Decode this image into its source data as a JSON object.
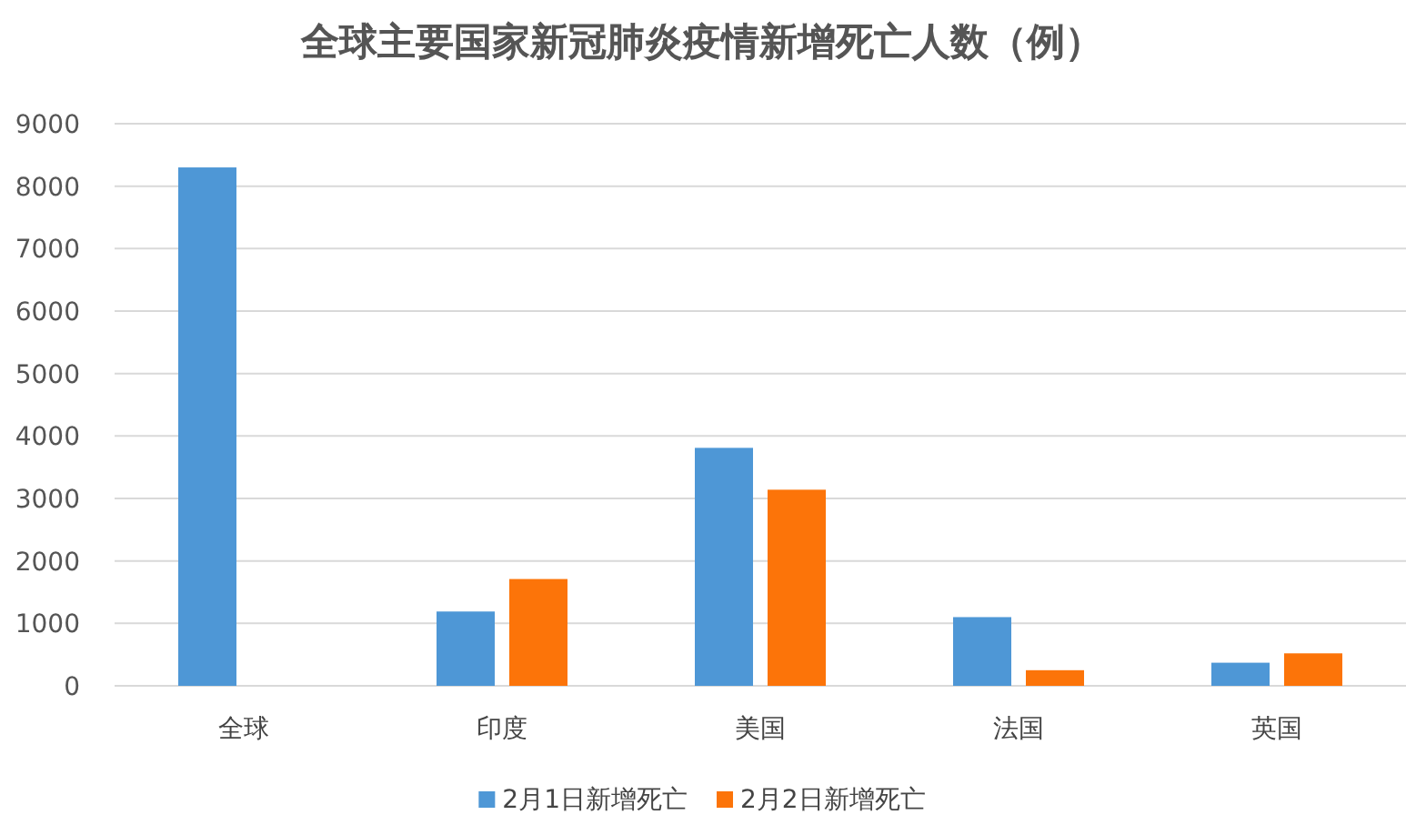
{
  "chart_data": {
    "type": "bar",
    "title": "全球主要国家新冠肺炎疫情新增死亡人数（例）",
    "categories": [
      "全球",
      "印度",
      "美国",
      "法国",
      "英国"
    ],
    "series": [
      {
        "name": "2月1日新增死亡",
        "color": "#4e97d6",
        "values": [
          8300,
          1190,
          3810,
          1100,
          370
        ]
      },
      {
        "name": "2月2日新增死亡",
        "color": "#fc7409",
        "values": [
          null,
          1710,
          3140,
          250,
          520
        ]
      }
    ],
    "ylim": [
      0,
      9000
    ],
    "yticks": [
      0,
      1000,
      2000,
      3000,
      4000,
      5000,
      6000,
      7000,
      8000,
      9000
    ],
    "grid": "y",
    "legend": "bottom"
  }
}
